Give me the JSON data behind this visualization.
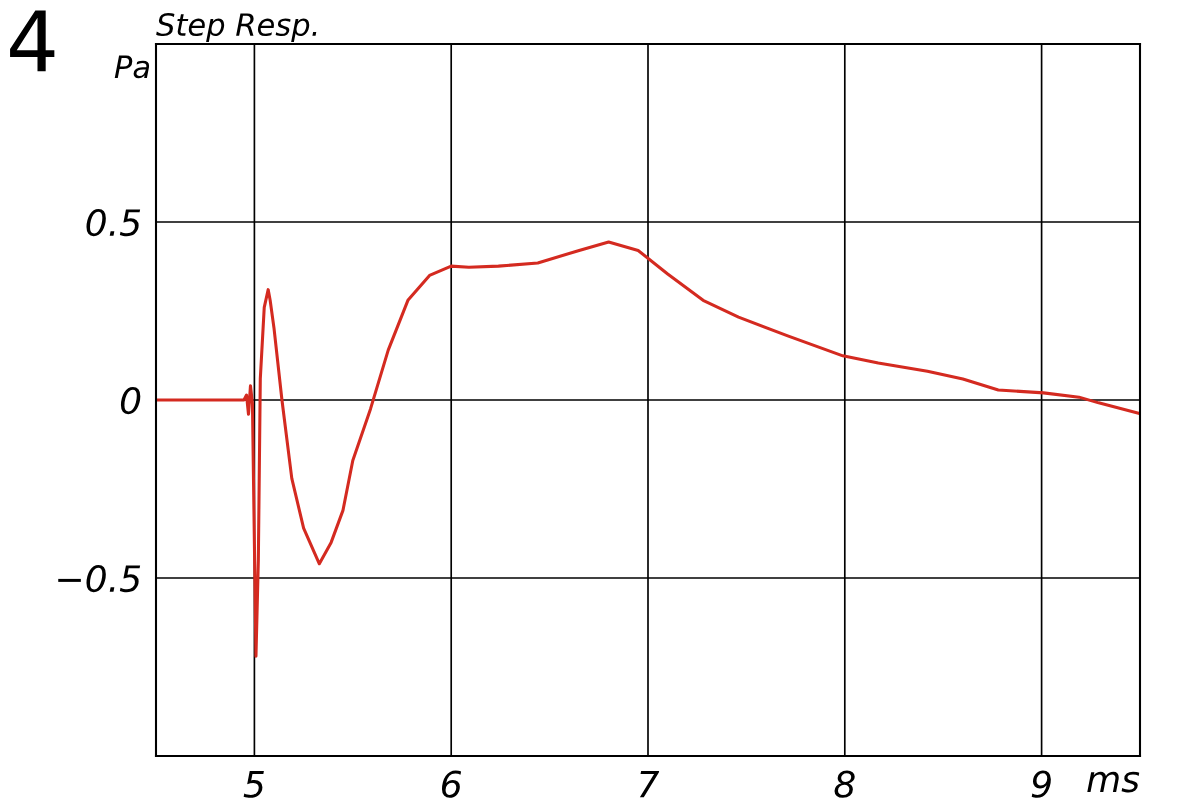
{
  "chart_data": {
    "type": "line",
    "title": "Step Resp.",
    "xlabel": "ms",
    "ylabel": "Pa",
    "annotations": [
      "4"
    ],
    "x": [
      4.5,
      4.947,
      4.96,
      4.97,
      4.98,
      4.99,
      5.008,
      5.02,
      5.03,
      5.05,
      5.07,
      5.08,
      5.1,
      5.14,
      5.19,
      5.25,
      5.33,
      5.39,
      5.45,
      5.5,
      5.59,
      5.68,
      5.78,
      5.89,
      6.0,
      6.09,
      6.24,
      6.44,
      6.65,
      6.8,
      6.95,
      7.1,
      7.28,
      7.46,
      7.71,
      7.99,
      8.17,
      8.42,
      8.6,
      8.78,
      9.01,
      9.19,
      9.29,
      9.49
    ],
    "series": [
      {
        "color": "#d42a20",
        "values": [
          0,
          0,
          0.014,
          -0.04,
          0.04,
          -0.01,
          -0.72,
          -0.45,
          0.06,
          0.26,
          0.31,
          0.28,
          0.2,
          0.0,
          -0.22,
          -0.36,
          -0.46,
          -0.4,
          -0.31,
          -0.17,
          -0.025,
          0.14,
          0.28,
          0.35,
          0.376,
          0.373,
          0.376,
          0.385,
          0.42,
          0.444,
          0.42,
          0.354,
          0.28,
          0.233,
          0.18,
          0.124,
          0.104,
          0.081,
          0.059,
          0.028,
          0.02,
          0.008,
          -0.008,
          -0.037
        ]
      }
    ],
    "xlim": [
      4.5,
      9.5
    ],
    "ylim": [
      -1,
      1
    ],
    "xticks": [
      5,
      6,
      7,
      8,
      9
    ],
    "yticks": [
      -0.5,
      0,
      0.5
    ],
    "grid": true,
    "marker": "none",
    "line_style": "solid"
  }
}
